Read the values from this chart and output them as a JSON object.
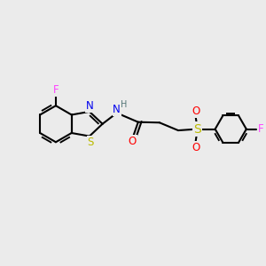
{
  "bg_color": "#ebebeb",
  "bond_color": "#000000",
  "bond_width": 1.5,
  "atom_colors": {
    "F": "#ff44ff",
    "N": "#0000ee",
    "H": "#557777",
    "S": "#bbbb00",
    "O": "#ff0000",
    "C": "#000000"
  },
  "font_size": 8.5,
  "fig_size": [
    3.0,
    3.0
  ],
  "dpi": 100
}
